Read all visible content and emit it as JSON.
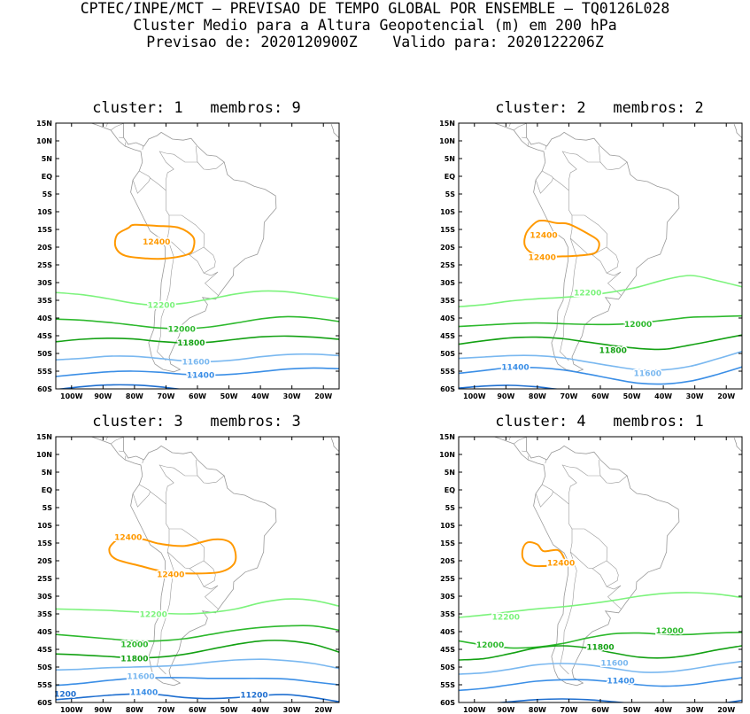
{
  "header": {
    "line1": "CPTEC/INPE/MCT – PREVISAO DE TEMPO GLOBAL POR ENSEMBLE – TQ0126L028",
    "line2": "Cluster Medio para a Altura Geopotencial (m) em 200 hPa",
    "line3": "Previsao de: 2020120900Z    Valido para: 2020122206Z"
  },
  "axes": {
    "lat_ticks": [
      "15N",
      "10N",
      "5N",
      "EQ",
      "5S",
      "10S",
      "15S",
      "20S",
      "25S",
      "30S",
      "35S",
      "40S",
      "45S",
      "50S",
      "55S",
      "60S"
    ],
    "lon_ticks": [
      "100W",
      "90W",
      "80W",
      "70W",
      "60W",
      "50W",
      "40W",
      "30W",
      "20W"
    ]
  },
  "colors": {
    "c12400": "#ff9900",
    "c12200": "#7cf37c",
    "c12000": "#2db92d",
    "c11800": "#13a113",
    "c11600": "#7ab8f0",
    "c11400": "#3a8ee6",
    "c11200": "#1f6fd0",
    "coast": "#999999"
  },
  "panels": [
    {
      "title": "cluster: 1   membros: 9",
      "labels": [
        "12400",
        "12200",
        "12000",
        "11800",
        "11600",
        "11400"
      ]
    },
    {
      "title": "cluster: 2   membros: 2",
      "labels": [
        "12400",
        "12400",
        "12200",
        "12000",
        "11800",
        "11400",
        "11600"
      ]
    },
    {
      "title": "cluster: 3   membros: 3",
      "labels": [
        "12400",
        "12400",
        "12200",
        "12000",
        "11800",
        "11600",
        "11400",
        "1200",
        "11200"
      ]
    },
    {
      "title": "cluster: 4   membros: 1",
      "labels": [
        "12400",
        "12200",
        "12000",
        "12000",
        "11800",
        "11600",
        "11400"
      ]
    }
  ]
}
